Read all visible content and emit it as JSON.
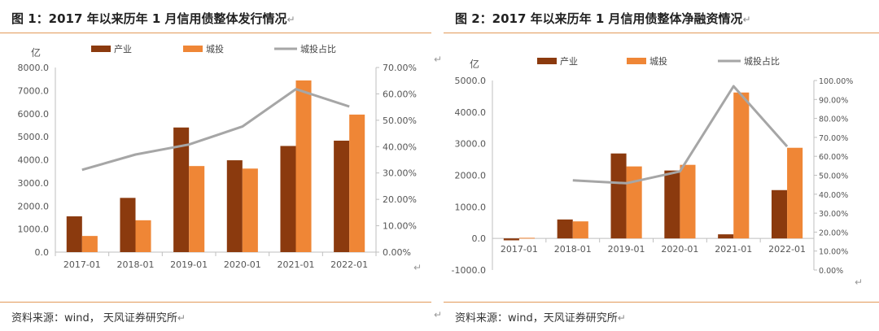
{
  "left": {
    "title": "图 1：2017 年以来历年 1 月信用债整体发行情况",
    "source": "资料来源：wind， 天风证券研究所"
  },
  "right": {
    "title": "图 2：2017 年以来历年 1 月信用债整体净融资情况",
    "source": "资料来源：wind，天风证券研究所"
  },
  "return_mark": "↵",
  "chart_data": [
    {
      "type": "bar",
      "unit": "亿",
      "categories": [
        "2017-01",
        "2018-01",
        "2019-01",
        "2020-01",
        "2021-01",
        "2022-01"
      ],
      "series": [
        {
          "name": "产业",
          "kind": "bar",
          "axis": "left",
          "color": "#8b3a0e",
          "values": [
            1550,
            2350,
            5400,
            3980,
            4600,
            4830
          ]
        },
        {
          "name": "城投",
          "kind": "bar",
          "axis": "left",
          "color": "#ef8636",
          "values": [
            700,
            1380,
            3730,
            3620,
            7440,
            5960
          ]
        },
        {
          "name": "城投占比",
          "kind": "line",
          "axis": "right",
          "color": "#a6a6a6",
          "values": [
            31.2,
            37.0,
            40.8,
            47.6,
            61.8,
            55.2
          ]
        }
      ],
      "ylim_left": [
        0,
        8000
      ],
      "yticks_left": [
        "0.0",
        "1000.0",
        "2000.0",
        "3000.0",
        "4000.0",
        "5000.0",
        "6000.0",
        "7000.0",
        "8000.0"
      ],
      "ylim_right": [
        0,
        70
      ],
      "yticks_right": [
        "0.00%",
        "10.00%",
        "20.00%",
        "30.00%",
        "40.00%",
        "50.00%",
        "60.00%",
        "70.00%"
      ],
      "legend_position": "top"
    },
    {
      "type": "bar",
      "unit": "亿",
      "categories": [
        "2017-01",
        "2018-01",
        "2019-01",
        "2020-01",
        "2021-01",
        "2022-01"
      ],
      "series": [
        {
          "name": "产业",
          "kind": "bar",
          "axis": "left",
          "color": "#8b3a0e",
          "values": [
            -60,
            600,
            2690,
            2150,
            130,
            1530
          ]
        },
        {
          "name": "城投",
          "kind": "bar",
          "axis": "left",
          "color": "#ef8636",
          "values": [
            20,
            540,
            2280,
            2330,
            4620,
            2870
          ]
        },
        {
          "name": "城投占比",
          "kind": "line",
          "axis": "right",
          "color": "#a6a6a6",
          "values": [
            null,
            47.3,
            45.8,
            52.0,
            97.0,
            65.2
          ]
        }
      ],
      "ylim_left": [
        -1000,
        5000
      ],
      "yticks_left": [
        "-1000.0",
        "0.0",
        "1000.0",
        "2000.0",
        "3000.0",
        "4000.0",
        "5000.0"
      ],
      "ylim_right": [
        0,
        100
      ],
      "yticks_right": [
        "0.00%",
        "10.00%",
        "20.00%",
        "30.00%",
        "40.00%",
        "50.00%",
        "60.00%",
        "70.00%",
        "80.00%",
        "90.00%",
        "100.00%"
      ],
      "legend_position": "top"
    }
  ]
}
